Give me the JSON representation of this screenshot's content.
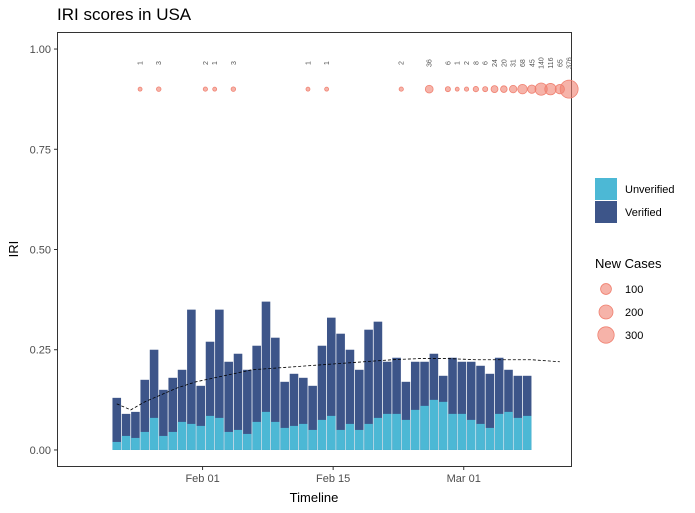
{
  "chart_data": {
    "type": "bar",
    "title": "IRI scores in USA",
    "xlabel": "Timeline",
    "ylabel": "IRI",
    "ylim": [
      -0.04,
      1.04
    ],
    "y_ticks": [
      0.0,
      0.25,
      0.5,
      0.75,
      1.0
    ],
    "y_tick_labels": [
      "0.00",
      "0.25",
      "0.50",
      "0.75",
      "1.00"
    ],
    "x_start_date": "Jan 20",
    "x_ticks": [
      {
        "label": "Feb 01",
        "day": 12
      },
      {
        "label": "Feb 15",
        "day": 26
      },
      {
        "label": "Mar 01",
        "day": 40
      }
    ],
    "stacked_bars": {
      "days": [
        0,
        1,
        2,
        3,
        4,
        5,
        6,
        7,
        8,
        9,
        10,
        11,
        12,
        13,
        14,
        15,
        16,
        17,
        18,
        19,
        20,
        21,
        22,
        23,
        24,
        25,
        26,
        27,
        28,
        29,
        30,
        31,
        32,
        33,
        34,
        35,
        36,
        37,
        38,
        39,
        40,
        41,
        42,
        43,
        44,
        45,
        46,
        47
      ],
      "total": [
        0.13,
        0.09,
        0.095,
        0.175,
        0.25,
        0.15,
        0.18,
        0.2,
        0.35,
        0.16,
        0.27,
        0.35,
        0.22,
        0.24,
        0.2,
        0.26,
        0.37,
        0.28,
        0.17,
        0.19,
        0.18,
        0.16,
        0.26,
        0.33,
        0.29,
        0.25,
        0.2,
        0.3,
        0.32,
        0.22,
        0.23,
        0.17,
        0.22,
        0.22,
        0.24,
        0.185,
        0.23,
        0.22,
        0.22,
        0.21,
        0.19,
        0.23,
        0.2,
        0.185,
        0.185
      ],
      "unverified": [
        0.02,
        0.035,
        0.03,
        0.045,
        0.08,
        0.035,
        0.045,
        0.07,
        0.065,
        0.06,
        0.085,
        0.08,
        0.045,
        0.05,
        0.04,
        0.07,
        0.095,
        0.07,
        0.055,
        0.06,
        0.065,
        0.05,
        0.075,
        0.085,
        0.05,
        0.065,
        0.05,
        0.065,
        0.08,
        0.09,
        0.09,
        0.075,
        0.1,
        0.11,
        0.125,
        0.12,
        0.09,
        0.09,
        0.075,
        0.065,
        0.055,
        0.09,
        0.095,
        0.08,
        0.085
      ],
      "bar_days": [
        0,
        1,
        2,
        3,
        4,
        5,
        6,
        7,
        8,
        9,
        10,
        11,
        12,
        13,
        14,
        15,
        16,
        17,
        18,
        19,
        20,
        21,
        22,
        23,
        24,
        25,
        26,
        27,
        28,
        29,
        30,
        31,
        32,
        33,
        34,
        35,
        36,
        37,
        38,
        39,
        40,
        41,
        42,
        43,
        44
      ]
    },
    "series": [
      {
        "name": "Unverified",
        "color": "#4cb8d5"
      },
      {
        "name": "Verified",
        "color": "#3d5589"
      }
    ],
    "trend_line": {
      "style": "dashed",
      "points": [
        [
          0.5,
          0.115
        ],
        [
          2.0,
          0.1
        ],
        [
          3.5,
          0.12
        ],
        [
          5.0,
          0.135
        ],
        [
          7.0,
          0.155
        ],
        [
          9.0,
          0.17
        ],
        [
          12.0,
          0.185
        ],
        [
          15.0,
          0.2
        ],
        [
          18.0,
          0.205
        ],
        [
          21.0,
          0.21
        ],
        [
          24.0,
          0.215
        ],
        [
          27.0,
          0.22
        ],
        [
          30.0,
          0.225
        ],
        [
          33.0,
          0.228
        ],
        [
          36.0,
          0.228
        ],
        [
          39.0,
          0.225
        ],
        [
          42.0,
          0.225
        ],
        [
          45.0,
          0.225
        ],
        [
          48.0,
          0.22
        ]
      ]
    },
    "new_cases": {
      "y": 0.9,
      "label_y": 0.965,
      "color": "#f08070",
      "points": [
        {
          "day": 2.5,
          "cases": 1,
          "label": "1"
        },
        {
          "day": 4.5,
          "cases": 3,
          "label": "3"
        },
        {
          "day": 9.5,
          "cases": 2,
          "label": "2"
        },
        {
          "day": 10.5,
          "cases": 1,
          "label": "1"
        },
        {
          "day": 12.5,
          "cases": 3,
          "label": "3"
        },
        {
          "day": 20.5,
          "cases": 1,
          "label": "1"
        },
        {
          "day": 22.5,
          "cases": 1,
          "label": "1"
        },
        {
          "day": 30.5,
          "cases": 2,
          "label": "2"
        },
        {
          "day": 33.5,
          "cases": 36,
          "label": "36"
        },
        {
          "day": 35.5,
          "cases": 6,
          "label": "6"
        },
        {
          "day": 36.5,
          "cases": 1,
          "label": "1"
        },
        {
          "day": 37.5,
          "cases": 2,
          "label": "2"
        },
        {
          "day": 38.5,
          "cases": 8,
          "label": "8"
        },
        {
          "day": 39.5,
          "cases": 6,
          "label": "6"
        },
        {
          "day": 40.5,
          "cases": 24,
          "label": "24"
        },
        {
          "day": 41.5,
          "cases": 20,
          "label": "20"
        },
        {
          "day": 42.5,
          "cases": 31,
          "label": "31"
        },
        {
          "day": 43.5,
          "cases": 68,
          "label": "68"
        },
        {
          "day": 44.5,
          "cases": 45,
          "label": "45"
        },
        {
          "day": 45.5,
          "cases": 140,
          "label": "140"
        },
        {
          "day": 46.5,
          "cases": 116,
          "label": "116"
        },
        {
          "day": 47.5,
          "cases": 65,
          "label": "65"
        },
        {
          "day": 48.5,
          "cases": 376,
          "label": "376"
        }
      ]
    },
    "legend_fill": {
      "items": [
        {
          "label": "Unverified",
          "color": "#4cb8d5"
        },
        {
          "label": "Verified",
          "color": "#3d5589"
        }
      ]
    },
    "legend_size": {
      "title": "New Cases",
      "items": [
        {
          "label": "100",
          "cases": 100
        },
        {
          "label": "200",
          "cases": 200
        },
        {
          "label": "300",
          "cases": 300
        }
      ]
    },
    "grid": false
  }
}
